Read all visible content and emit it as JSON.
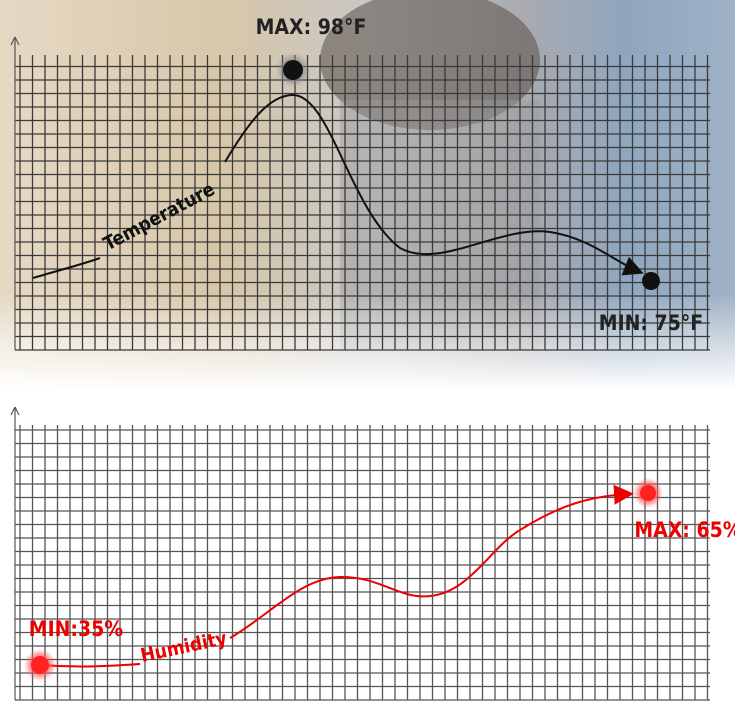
{
  "temperature_panel": {
    "line_label": "Temperature",
    "max_label": "MAX: 98°F",
    "min_label": "MIN: 75°F"
  },
  "humidity_panel": {
    "line_label": "Humidity",
    "min_label": "MIN:35%",
    "max_label": "MAX: 65%"
  }
}
